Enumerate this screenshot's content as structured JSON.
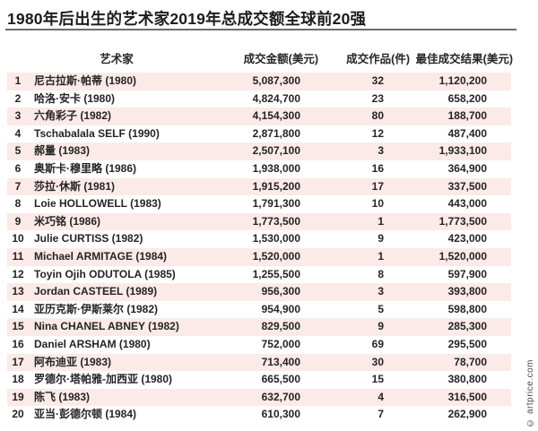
{
  "title": "1980年后出生的艺术家2019年总成交额全球前20强",
  "watermark": "© artprice.com",
  "colors": {
    "stripe": "#fbeae8",
    "text": "#242424",
    "rule": "#6b6b6b",
    "background": "#ffffff"
  },
  "chart_data": {
    "type": "table",
    "title": "1980年后出生的艺术家2019年总成交额全球前20强",
    "layout": {
      "striped_rows": "odd rows pink",
      "header_rule": "thick gray line under title"
    },
    "headers": {
      "artist": "艺术家",
      "amount": "成交金额(美元)",
      "works": "成交作品(件)",
      "best": "最佳成交结果(美元)"
    },
    "rows": [
      {
        "rank": "1",
        "artist": "尼古拉斯·帕蒂 (1980)",
        "amount": "5,087,300",
        "works": "32",
        "best": "1,120,200"
      },
      {
        "rank": "2",
        "artist": "哈洛·安卡 (1980)",
        "amount": "4,824,700",
        "works": "23",
        "best": "658,200"
      },
      {
        "rank": "3",
        "artist": "六角彩子 (1982)",
        "amount": "4,154,300",
        "works": "80",
        "best": "188,700"
      },
      {
        "rank": "4",
        "artist": "Tschabalala SELF (1990)",
        "amount": "2,871,800",
        "works": "12",
        "best": "487,400"
      },
      {
        "rank": "5",
        "artist": "郝量 (1983)",
        "amount": "2,507,100",
        "works": "3",
        "best": "1,933,100"
      },
      {
        "rank": "6",
        "artist": "奥斯卡·穆里略 (1986)",
        "amount": "1,938,000",
        "works": "16",
        "best": "364,900"
      },
      {
        "rank": "7",
        "artist": "莎拉·休斯 (1981)",
        "amount": "1,915,200",
        "works": "17",
        "best": "337,500"
      },
      {
        "rank": "8",
        "artist": "Loie HOLLOWELL (1983)",
        "amount": "1,791,300",
        "works": "10",
        "best": "443,000"
      },
      {
        "rank": "9",
        "artist": "米巧铭 (1986)",
        "amount": "1,773,500",
        "works": "1",
        "best": "1,773,500"
      },
      {
        "rank": "10",
        "artist": "Julie CURTISS (1982)",
        "amount": "1,530,000",
        "works": "9",
        "best": "423,000"
      },
      {
        "rank": "11",
        "artist": "Michael ARMITAGE (1984)",
        "amount": "1,520,000",
        "works": "1",
        "best": "1,520,000"
      },
      {
        "rank": "12",
        "artist": "Toyin Ojih ODUTOLA (1985)",
        "amount": "1,255,500",
        "works": "8",
        "best": "597,900"
      },
      {
        "rank": "13",
        "artist": "Jordan CASTEEL (1989)",
        "amount": "956,300",
        "works": "3",
        "best": "393,800"
      },
      {
        "rank": "14",
        "artist": "亚历克斯·伊斯莱尔 (1982)",
        "amount": "954,900",
        "works": "5",
        "best": "598,800"
      },
      {
        "rank": "15",
        "artist": "Nina CHANEL ABNEY (1982)",
        "amount": "829,500",
        "works": "9",
        "best": "285,300"
      },
      {
        "rank": "16",
        "artist": "Daniel ARSHAM (1980)",
        "amount": "752,000",
        "works": "69",
        "best": "295,500"
      },
      {
        "rank": "17",
        "artist": "阿布迪亚 (1983)",
        "amount": "713,400",
        "works": "30",
        "best": "78,700"
      },
      {
        "rank": "18",
        "artist": "罗德尔·塔帕雅-加西亚 (1980)",
        "amount": "665,500",
        "works": "15",
        "best": "380,800"
      },
      {
        "rank": "19",
        "artist": "陈飞 (1983)",
        "amount": "632,700",
        "works": "4",
        "best": "316,500"
      },
      {
        "rank": "20",
        "artist": "亚当·彭德尔顿 (1984)",
        "amount": "610,300",
        "works": "7",
        "best": "262,900"
      }
    ]
  }
}
